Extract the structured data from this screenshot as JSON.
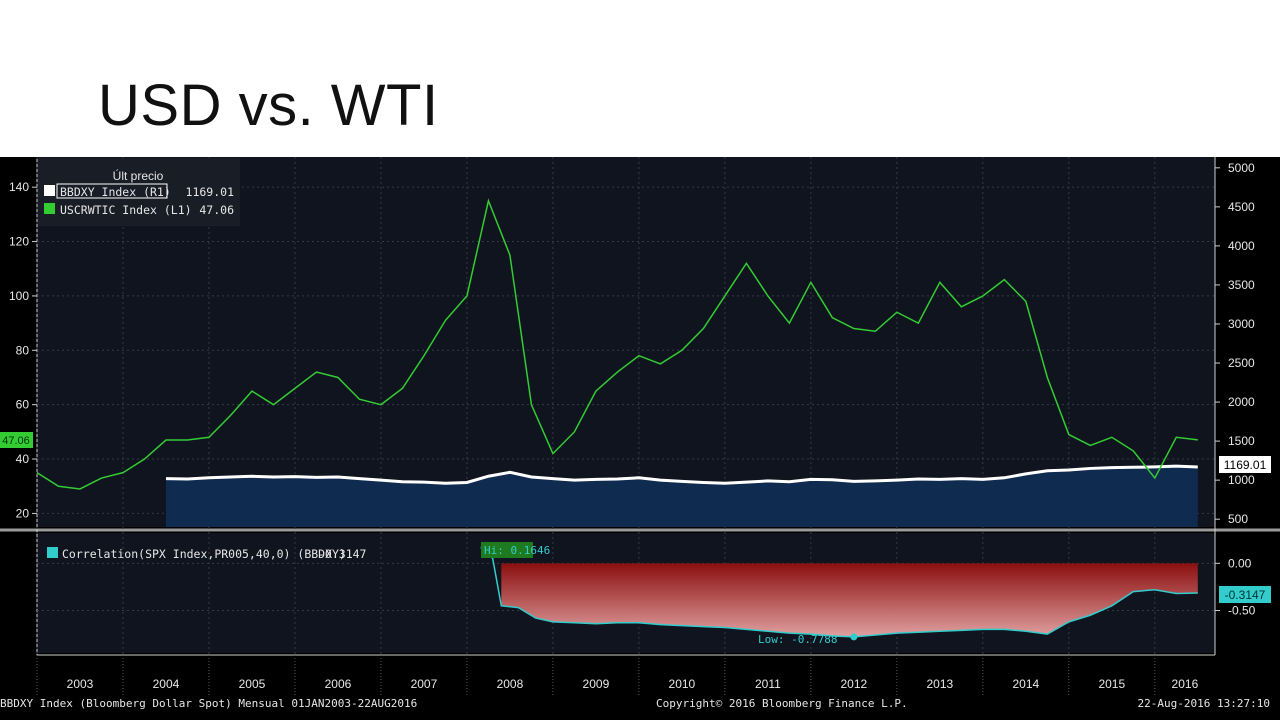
{
  "slide": {
    "title": "USD vs. WTI"
  },
  "chart_data": [
    {
      "type": "line",
      "legend_title": "Últ precio",
      "legend_placement": "top-left",
      "series": [
        {
          "name": "BBDXY Index  (R1)",
          "last_value": "1169.01",
          "axis": "right",
          "color": "#ffffff",
          "area_fill": "#0f2b4f",
          "x": [
            2004.5,
            2004.75,
            2005,
            2005.25,
            2005.5,
            2005.75,
            2006,
            2006.25,
            2006.5,
            2006.75,
            2007,
            2007.25,
            2007.5,
            2007.75,
            2008,
            2008.25,
            2008.5,
            2008.75,
            2009,
            2009.25,
            2009.5,
            2009.75,
            2010,
            2010.25,
            2010.5,
            2010.75,
            2011,
            2011.25,
            2011.5,
            2011.75,
            2012,
            2012.25,
            2012.5,
            2012.75,
            2013,
            2013.25,
            2013.5,
            2013.75,
            2014,
            2014.25,
            2014.5,
            2014.75,
            2015,
            2015.25,
            2015.5,
            2015.75,
            2016,
            2016.25,
            2016.5
          ],
          "values": [
            1020,
            1015,
            1030,
            1040,
            1050,
            1040,
            1045,
            1035,
            1040,
            1020,
            1000,
            980,
            975,
            960,
            970,
            1050,
            1100,
            1040,
            1020,
            1000,
            1010,
            1015,
            1030,
            1000,
            985,
            970,
            960,
            975,
            990,
            980,
            1010,
            1005,
            985,
            990,
            1000,
            1015,
            1010,
            1020,
            1010,
            1030,
            1080,
            1120,
            1130,
            1150,
            1160,
            1165,
            1170,
            1180,
            1169.01
          ]
        },
        {
          "name": "USCRWTIC Index  (L1)",
          "last_value": "47.06",
          "axis": "left",
          "color": "#33cc33",
          "x": [
            2003,
            2003.25,
            2003.5,
            2003.75,
            2004,
            2004.25,
            2004.5,
            2004.75,
            2005,
            2005.25,
            2005.5,
            2005.75,
            2006,
            2006.25,
            2006.5,
            2006.75,
            2007,
            2007.25,
            2007.5,
            2007.75,
            2008,
            2008.25,
            2008.5,
            2008.75,
            2009,
            2009.25,
            2009.5,
            2009.75,
            2010,
            2010.25,
            2010.5,
            2010.75,
            2011,
            2011.25,
            2011.5,
            2011.75,
            2012,
            2012.25,
            2012.5,
            2012.75,
            2013,
            2013.25,
            2013.5,
            2013.75,
            2014,
            2014.25,
            2014.5,
            2014.75,
            2015,
            2015.25,
            2015.5,
            2015.75,
            2016,
            2016.25,
            2016.5
          ],
          "values": [
            35,
            30,
            29,
            33,
            35,
            40,
            47,
            47,
            48,
            56,
            65,
            60,
            66,
            72,
            70,
            62,
            60,
            66,
            78,
            91,
            100,
            135,
            115,
            60,
            42,
            50,
            65,
            72,
            78,
            75,
            80,
            88,
            100,
            112,
            100,
            90,
            105,
            92,
            88,
            87,
            94,
            90,
            105,
            96,
            100,
            106,
            98,
            70,
            49,
            45,
            48,
            43,
            33,
            48,
            47.06
          ]
        },
        {
          "name": "Correlation(SPX Index,PR005,40,0) (BBDXY)",
          "last_value": "-0.3147",
          "axis": "lower",
          "color": "#33cccc",
          "area_fill": "#8b1a1a",
          "x": [
            2008.2,
            2008.3,
            2008.4,
            2008.6,
            2008.8,
            2009,
            2009.25,
            2009.5,
            2009.75,
            2010,
            2010.25,
            2010.5,
            2010.75,
            2011,
            2011.25,
            2011.5,
            2011.75,
            2012,
            2012.25,
            2012.5,
            2012.75,
            2013,
            2013.25,
            2013.5,
            2013.75,
            2014,
            2014.25,
            2014.5,
            2014.75,
            2015,
            2015.25,
            2015.5,
            2015.75,
            2016,
            2016.25,
            2016.5
          ],
          "values": [
            0.1646,
            0.05,
            -0.45,
            -0.47,
            -0.58,
            -0.62,
            -0.63,
            -0.64,
            -0.63,
            -0.63,
            -0.65,
            -0.66,
            -0.67,
            -0.68,
            -0.7,
            -0.72,
            -0.74,
            -0.75,
            -0.77,
            -0.7788,
            -0.76,
            -0.74,
            -0.73,
            -0.72,
            -0.71,
            -0.7,
            -0.7,
            -0.72,
            -0.75,
            -0.62,
            -0.55,
            -0.45,
            -0.3,
            -0.28,
            -0.32,
            -0.3147
          ]
        }
      ],
      "annotations": {
        "hi_label": "Hi: 0.1646",
        "low_label": "Low: -0.7788"
      },
      "left_axis": {
        "ticks": [
          "20",
          "40",
          "60",
          "80",
          "100",
          "120",
          "140"
        ],
        "ylim": [
          15,
          150
        ]
      },
      "right_axis": {
        "ticks": [
          "500",
          "1000",
          "1500",
          "2000",
          "2500",
          "3000",
          "3500",
          "4000",
          "4500",
          "5000"
        ],
        "ylim": [
          400,
          5100
        ]
      },
      "lower_axis": {
        "ticks": [
          "0.00",
          "-0.50"
        ],
        "ylim": [
          -0.95,
          0.3
        ]
      },
      "x_axis": {
        "ticks": [
          "2003",
          "2004",
          "2005",
          "2006",
          "2007",
          "2008",
          "2009",
          "2010",
          "2011",
          "2012",
          "2013",
          "2014",
          "2015",
          "2016"
        ],
        "xlim": [
          2003,
          2016.7
        ]
      },
      "footer": {
        "left": "BBDXY Index (Bloomberg Dollar Spot)  Mensual 01JAN2003-22AUG2016",
        "center": "Copyright© 2016 Bloomberg Finance L.P.",
        "right": "22-Aug-2016 13:27:10"
      },
      "colors": {
        "background": "#000000",
        "panel": "#0b0f1a",
        "grid": "#3a3f4a"
      }
    }
  ]
}
